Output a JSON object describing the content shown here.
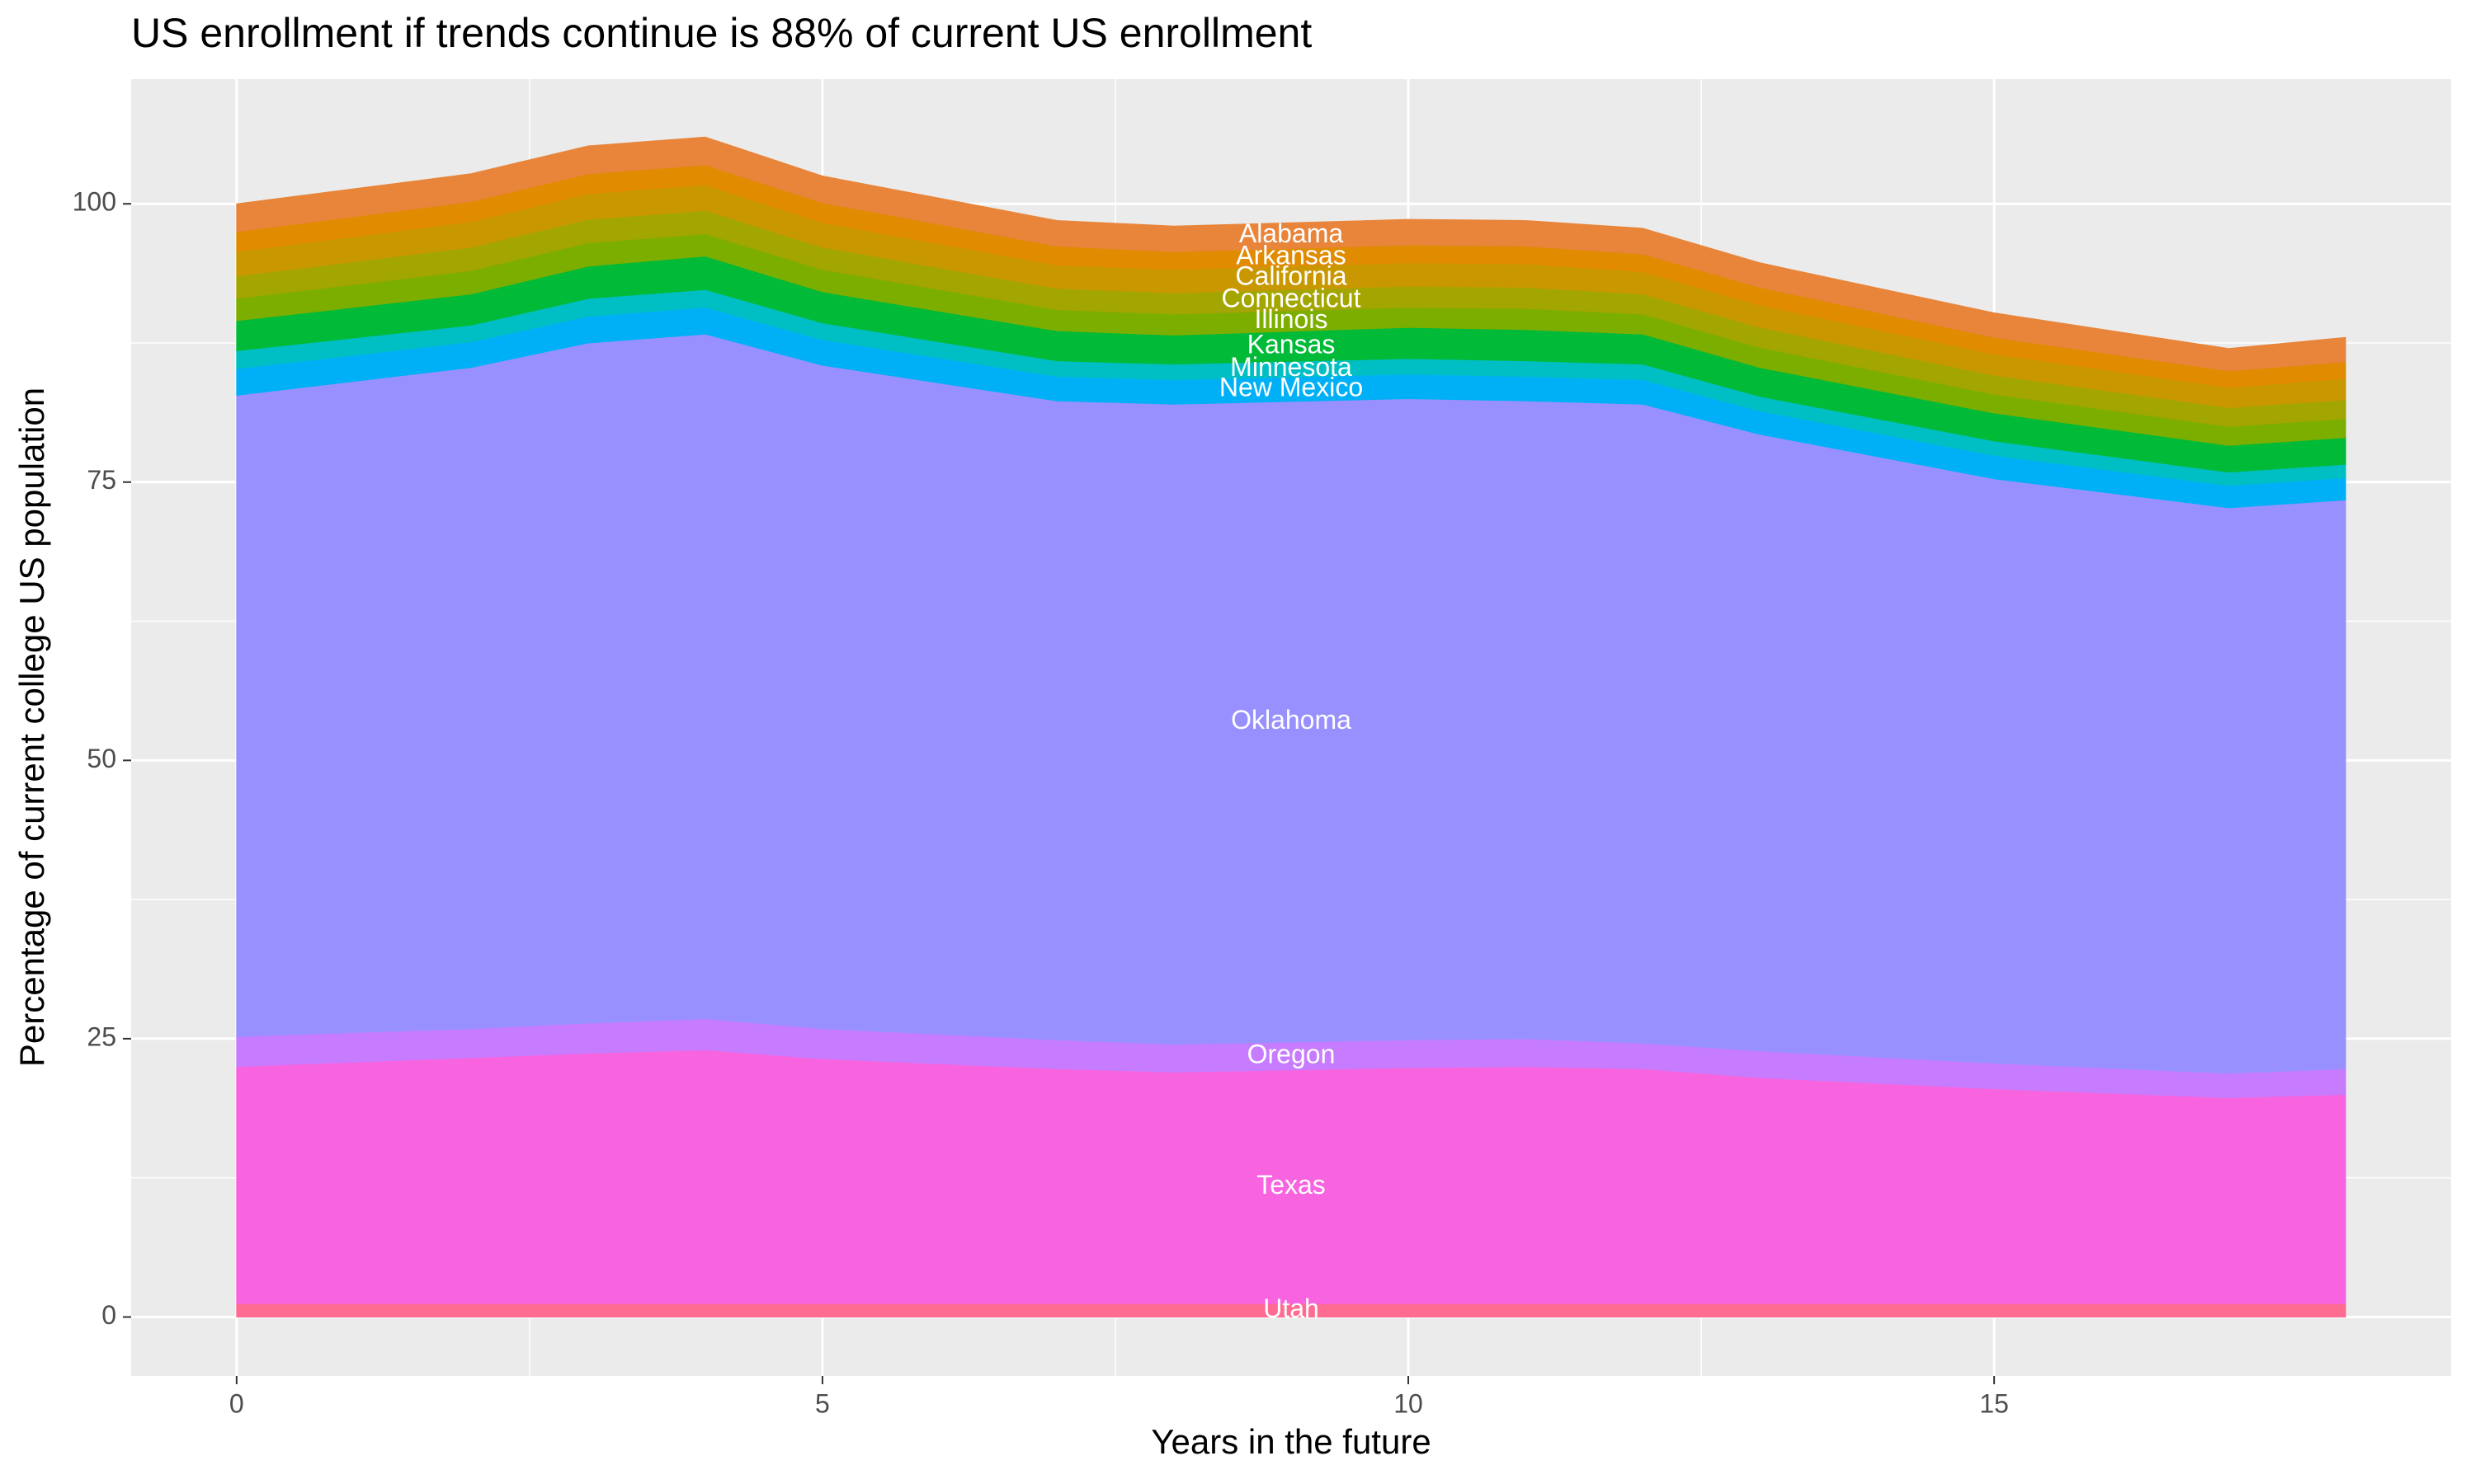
{
  "chart_data": {
    "type": "area",
    "title": "US enrollment if trends continue is 88% of current US enrollment",
    "x_label": "Years in the future",
    "y_label": "Percentage of current college US population",
    "x": [
      0,
      2,
      3,
      4,
      5,
      7,
      8,
      10,
      11,
      12,
      13,
      15,
      17,
      18
    ],
    "xlim": [
      -0.9,
      18.9
    ],
    "xticks": [
      0,
      5,
      10,
      15
    ],
    "ylim": [
      -5.3,
      111.2
    ],
    "yticks": [
      0,
      25,
      50,
      75,
      100
    ],
    "grid": true,
    "stacked": true,
    "series": [
      {
        "name": "Utah",
        "color": "#ff6c91",
        "values": [
          1.2,
          1.2,
          1.2,
          1.2,
          1.2,
          1.2,
          1.2,
          1.2,
          1.2,
          1.2,
          1.2,
          1.2,
          1.2,
          1.2
        ]
      },
      {
        "name": "Texas",
        "color": "#f863df",
        "values": [
          21.3,
          22.1,
          22.5,
          22.8,
          22.0,
          21.1,
          20.8,
          21.2,
          21.3,
          21.1,
          20.3,
          19.3,
          18.5,
          18.8
        ]
      },
      {
        "name": "Oregon",
        "color": "#c77cff",
        "values": [
          2.7,
          2.6,
          2.7,
          2.8,
          2.7,
          2.6,
          2.5,
          2.5,
          2.5,
          2.3,
          2.4,
          2.3,
          2.2,
          2.3
        ]
      },
      {
        "name": "Oklahoma",
        "color": "#9990ff",
        "values": [
          57.6,
          59.4,
          61.1,
          61.5,
          59.6,
          57.4,
          57.5,
          57.6,
          57.3,
          57.4,
          55.4,
          52.5,
          50.8,
          51.1
        ]
      },
      {
        "name": "New Mexico",
        "color": "#00b0f6",
        "values": [
          2.4,
          2.3,
          2.4,
          2.4,
          2.3,
          2.2,
          2.2,
          2.2,
          2.2,
          2.2,
          2.1,
          2.1,
          2.0,
          2.0
        ]
      },
      {
        "name": "Minnesota",
        "color": "#00bfc4",
        "values": [
          1.6,
          1.5,
          1.6,
          1.6,
          1.5,
          1.4,
          1.4,
          1.4,
          1.4,
          1.4,
          1.3,
          1.3,
          1.2,
          1.2
        ]
      },
      {
        "name": "Kansas",
        "color": "#00ba38",
        "values": [
          2.7,
          2.8,
          2.9,
          3.0,
          2.8,
          2.7,
          2.6,
          2.8,
          2.8,
          2.7,
          2.6,
          2.5,
          2.4,
          2.4
        ]
      },
      {
        "name": "Illinois",
        "color": "#7cae00",
        "values": [
          2.0,
          2.1,
          2.1,
          2.0,
          2.0,
          1.9,
          1.9,
          1.8,
          1.9,
          1.8,
          1.8,
          1.7,
          1.7,
          1.7
        ]
      },
      {
        "name": "Connecticut",
        "color": "#a3a500",
        "values": [
          2.0,
          2.1,
          2.1,
          2.1,
          2.0,
          1.9,
          1.9,
          1.9,
          1.9,
          1.8,
          1.8,
          1.7,
          1.7,
          1.7
        ]
      },
      {
        "name": "California",
        "color": "#c99800",
        "values": [
          2.2,
          2.3,
          2.3,
          2.3,
          2.2,
          2.1,
          2.1,
          2.1,
          2.1,
          2.0,
          2.0,
          1.9,
          1.8,
          1.9
        ]
      },
      {
        "name": "Arkansas",
        "color": "#e08b00",
        "values": [
          1.8,
          1.8,
          1.8,
          1.8,
          1.8,
          1.7,
          1.6,
          1.6,
          1.6,
          1.6,
          1.6,
          1.5,
          1.5,
          1.5
        ]
      },
      {
        "name": "Alabama",
        "color": "#e8853a",
        "values": [
          2.5,
          2.5,
          2.5,
          2.5,
          2.4,
          2.3,
          2.3,
          2.3,
          2.3,
          2.3,
          2.2,
          2.2,
          2.0,
          2.2
        ]
      }
    ]
  }
}
